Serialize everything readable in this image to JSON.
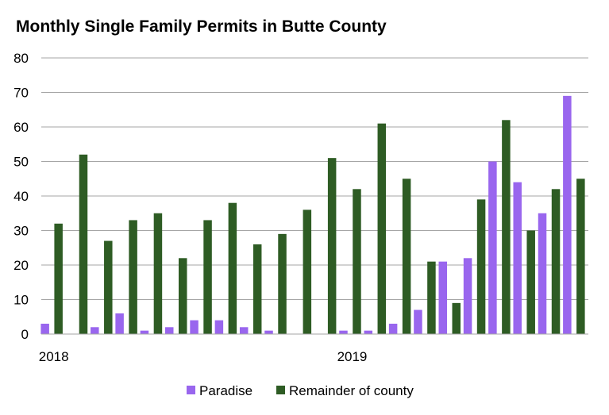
{
  "chart_data": {
    "type": "bar",
    "title": "Monthly Single Family Permits in Butte County",
    "xlabel": "",
    "ylabel": "",
    "ylim": [
      0,
      80
    ],
    "yticks": [
      0,
      10,
      20,
      30,
      40,
      50,
      60,
      70,
      80
    ],
    "grid": true,
    "legend_position": "bottom",
    "x_tick_labels": [
      {
        "label": "2018",
        "index": 0
      },
      {
        "label": "2019",
        "index": 12
      }
    ],
    "categories": [
      "1",
      "2",
      "3",
      "4",
      "5",
      "6",
      "7",
      "8",
      "9",
      "10",
      "11",
      "12",
      "13",
      "14",
      "15",
      "16",
      "17",
      "18",
      "19",
      "20",
      "21",
      "22"
    ],
    "series": [
      {
        "name": "Paradise",
        "color": "#9966ee",
        "values": [
          3,
          0,
          2,
          6,
          1,
          2,
          4,
          4,
          2,
          1,
          0,
          0,
          1,
          1,
          3,
          7,
          21,
          22,
          50,
          44,
          35,
          69
        ]
      },
      {
        "name": "Remainder of county",
        "color": "#2e5c24",
        "values": [
          32,
          52,
          27,
          33,
          35,
          22,
          33,
          38,
          26,
          29,
          36,
          51,
          42,
          61,
          45,
          21,
          9,
          39,
          62,
          30,
          42,
          45
        ]
      }
    ]
  }
}
